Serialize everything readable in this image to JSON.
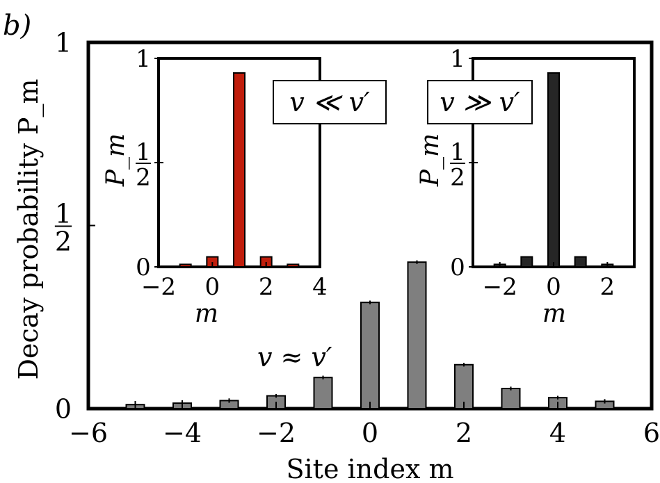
{
  "panel_label": "b)",
  "chart_data": [
    {
      "id": "main",
      "type": "bar",
      "title": "",
      "xlabel": "Site index m",
      "ylabel": "Decay probability P_m",
      "xlim": [
        -6,
        6
      ],
      "ylim": [
        0,
        1
      ],
      "xticks": [
        -6,
        -4,
        -2,
        0,
        2,
        4,
        6
      ],
      "yticks": [
        "0",
        "1/2",
        "1"
      ],
      "annotation": "v ≈ v′",
      "bar_color": "#7f7f7f",
      "x": [
        -5,
        -4,
        -3,
        -2,
        -1,
        0,
        1,
        2,
        3,
        4,
        5
      ],
      "values": [
        0.011,
        0.015,
        0.022,
        0.035,
        0.085,
        0.29,
        0.4,
        0.12,
        0.055,
        0.03,
        0.02
      ],
      "error_bars": [
        0.01,
        0.008,
        0.006,
        0.005,
        0.005,
        0.005,
        0.005,
        0.005,
        0.005,
        0.005,
        0.006
      ]
    },
    {
      "id": "inset-left",
      "type": "bar",
      "title": "",
      "xlabel": "m",
      "ylabel": "P_m",
      "xlim": [
        -2,
        4
      ],
      "ylim": [
        0,
        1
      ],
      "xticks": [
        -2,
        0,
        2,
        4
      ],
      "yticks": [
        "0",
        "1/2",
        "1"
      ],
      "annotation": "v ≪ v′",
      "bar_color": "#c01e0c",
      "x": [
        -1,
        0,
        1,
        2,
        3
      ],
      "values": [
        0.012,
        0.048,
        0.93,
        0.048,
        0.012
      ]
    },
    {
      "id": "inset-right",
      "type": "bar",
      "title": "",
      "xlabel": "m",
      "ylabel": "P_m",
      "xlim": [
        -3,
        3
      ],
      "ylim": [
        0,
        1
      ],
      "xticks": [
        -2,
        0,
        2
      ],
      "yticks": [
        "0",
        "1/2",
        "1"
      ],
      "annotation": "v ≫ v′",
      "bar_color": "#262626",
      "x": [
        -2,
        -1,
        0,
        1,
        2
      ],
      "values": [
        0.012,
        0.048,
        0.93,
        0.048,
        0.012
      ]
    }
  ]
}
